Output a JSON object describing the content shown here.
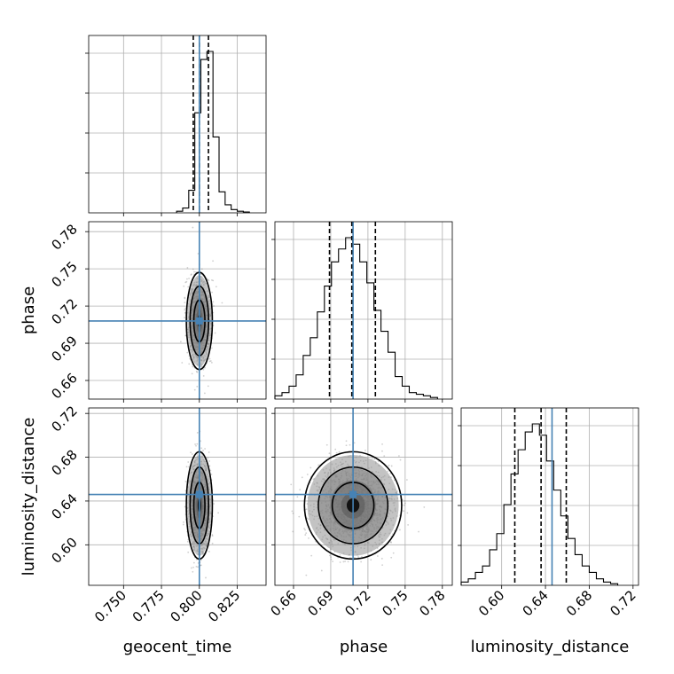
{
  "chart_data": {
    "type": "corner",
    "parameters": [
      "geocent_time",
      "phase",
      "luminosity_distance"
    ],
    "truths": {
      "geocent_time": 0.8,
      "phase": 0.708,
      "luminosity_distance": 0.646
    },
    "ranges": {
      "geocent_time": [
        0.727,
        0.844
      ],
      "phase": [
        0.645,
        0.788
      ],
      "luminosity_distance": [
        0.563,
        0.725
      ]
    },
    "ticks": {
      "geocent_time": [
        "0.750",
        "0.775",
        "0.800",
        "0.825"
      ],
      "phase": [
        "0.66",
        "0.69",
        "0.72",
        "0.75",
        "0.78"
      ],
      "luminosity_distance": [
        "0.60",
        "0.64",
        "0.68",
        "0.72"
      ]
    },
    "quantiles": {
      "geocent_time": [
        0.796,
        0.8,
        0.806
      ],
      "phase": [
        0.689,
        0.707,
        0.726
      ],
      "luminosity_distance": [
        0.612,
        0.636,
        0.659
      ]
    },
    "histograms": {
      "geocent_time": {
        "edges_start": 0.785,
        "bin_width": 0.004,
        "counts": [
          1,
          3,
          14,
          62,
          95,
          100,
          47,
          13,
          5,
          2,
          1,
          0.5
        ]
      },
      "phase": {
        "edges_start": 0.645,
        "bin_width": 0.0057,
        "counts": [
          2,
          4,
          8,
          15,
          27,
          38,
          54,
          70,
          85,
          93,
          100,
          96,
          85,
          72,
          55,
          42,
          29,
          14,
          8,
          4,
          3,
          2,
          1
        ]
      },
      "luminosity_distance": {
        "edges_start": 0.563,
        "bin_width": 0.0065,
        "counts": [
          2,
          4,
          8,
          12,
          22,
          32,
          50,
          69,
          84,
          95,
          100,
          93,
          77,
          59,
          43,
          29,
          19,
          12,
          8,
          4,
          2,
          1
        ]
      }
    },
    "distributions": {
      "geocent_time": {
        "mean": 0.8,
        "sd": 0.0035
      },
      "phase": {
        "mean": 0.708,
        "sd": 0.016
      },
      "luminosity_distance": {
        "mean": 0.636,
        "sd": 0.02
      }
    },
    "grid": true
  }
}
